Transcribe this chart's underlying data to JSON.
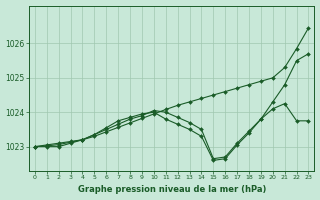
{
  "xlabel": "Graphe pression niveau de la mer (hPa)",
  "x_ticks": [
    0,
    1,
    2,
    3,
    4,
    5,
    6,
    7,
    8,
    9,
    10,
    11,
    12,
    13,
    14,
    15,
    16,
    17,
    18,
    19,
    20,
    21,
    22,
    23
  ],
  "ylim": [
    1022.3,
    1027.1
  ],
  "yticks": [
    1023,
    1024,
    1025,
    1026
  ],
  "background_color": "#c8e8d8",
  "grid_color": "#a0c8b0",
  "line_color": "#1a5c28",
  "series": [
    [
      1023.0,
      1023.05,
      1023.1,
      1023.15,
      1023.2,
      1023.35,
      1023.5,
      1023.65,
      1023.8,
      1023.9,
      1024.05,
      1024.0,
      1023.85,
      1023.7,
      1023.5,
      1022.65,
      1022.7,
      1023.1,
      1023.45,
      1023.8,
      1024.1,
      1024.25,
      1023.75,
      1023.75
    ],
    [
      1023.0,
      1023.0,
      1023.0,
      1023.1,
      1023.2,
      1023.35,
      1023.55,
      1023.75,
      1023.85,
      1023.95,
      1024.0,
      1023.8,
      1023.65,
      1023.5,
      1023.3,
      1022.6,
      1022.65,
      1023.05,
      1023.4,
      1023.8,
      1024.3,
      1024.8,
      1025.5,
      1025.7
    ],
    [
      1023.0,
      1023.02,
      1023.06,
      1023.13,
      1023.2,
      1023.3,
      1023.43,
      1023.56,
      1023.69,
      1023.82,
      1023.95,
      1024.08,
      1024.2,
      1024.3,
      1024.4,
      1024.5,
      1024.6,
      1024.7,
      1024.8,
      1024.9,
      1025.0,
      1025.3,
      1025.85,
      1026.45
    ]
  ]
}
